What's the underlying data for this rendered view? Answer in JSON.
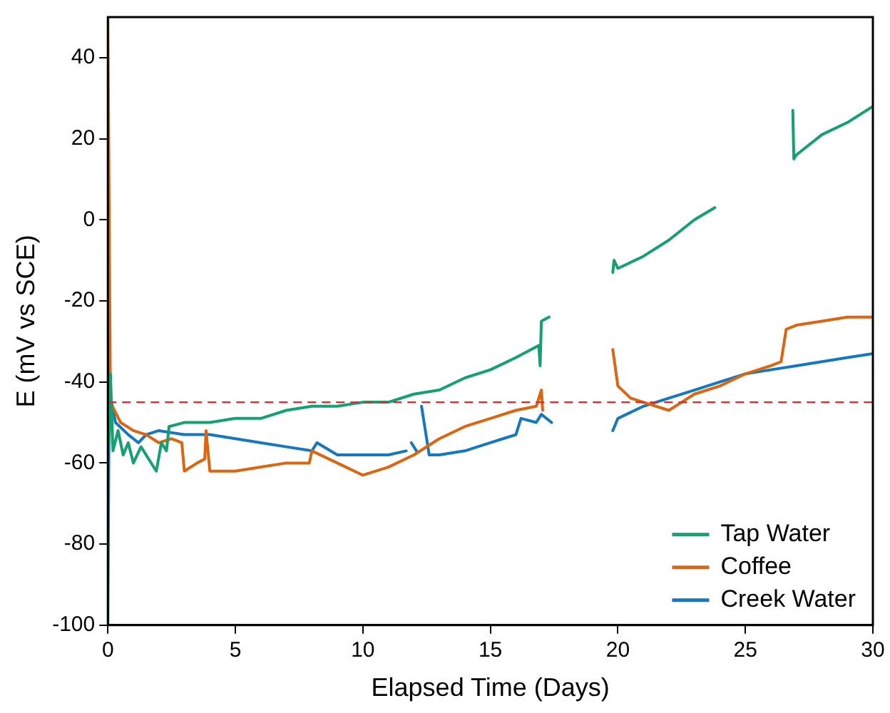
{
  "chart_data": {
    "type": "line",
    "xlabel": "Elapsed Time (Days)",
    "ylabel": "E (mV vs SCE)",
    "xlim": [
      0,
      30
    ],
    "xticks": [
      0,
      5,
      10,
      15,
      20,
      25,
      30
    ],
    "ylim": [
      -100,
      50
    ],
    "yticks": [
      -100,
      -80,
      -60,
      -40,
      -20,
      0,
      20,
      40
    ],
    "grid": false,
    "legend": "bottom right",
    "marker": "none",
    "line_style": "solid",
    "ref_lines": [
      {
        "axis": "y",
        "value": -45,
        "color": "#e8262b",
        "line_style": "dashed"
      }
    ],
    "series": [
      {
        "name": "Tap Water",
        "color": "#14a070",
        "x": [
          0.05,
          0.1,
          0.2,
          0.4,
          0.6,
          0.8,
          1.0,
          1.3,
          1.6,
          1.9,
          2.1,
          2.3,
          2.4,
          3,
          4,
          5,
          6,
          7,
          8,
          9,
          10,
          11,
          12,
          13,
          14,
          15,
          16,
          16.9,
          16.95,
          17.0,
          17.3,
          18.5,
          19.8,
          19.85,
          20,
          21,
          22,
          23,
          23.8,
          25,
          26.86,
          26.9,
          27,
          28,
          29,
          30
        ],
        "values": [
          -55,
          -38,
          -57,
          -52,
          -58,
          -55,
          -60,
          -56,
          -59,
          -62,
          -55,
          -57,
          -51,
          -50,
          -50,
          -49,
          -49,
          -47,
          -46,
          -46,
          -45,
          -45,
          -43,
          -42,
          -39,
          -37,
          -34,
          -31,
          -36,
          -25,
          -24,
          null,
          -13,
          -10,
          -12,
          -9,
          -5,
          0,
          3,
          null,
          27,
          15,
          16,
          21,
          24,
          28
        ]
      },
      {
        "name": "Coffee",
        "color": "#dc6512",
        "x": [
          0,
          0.1,
          0.5,
          1,
          1.5,
          2,
          2.5,
          2.9,
          3,
          3.5,
          3.8,
          3.85,
          4,
          5,
          6,
          7,
          7.9,
          8,
          9,
          10,
          11,
          12,
          13,
          14,
          15,
          16,
          16.8,
          17,
          17.05,
          18.5,
          19.8,
          20,
          20.5,
          21,
          22,
          22.5,
          23,
          24,
          25,
          26,
          26.4,
          26.6,
          27,
          28,
          29,
          30
        ],
        "values": [
          50,
          -45,
          -50,
          -52,
          -53,
          -55,
          -54,
          -55,
          -62,
          -60,
          -59,
          -52,
          -62,
          -62,
          -61,
          -60,
          -60,
          -57,
          -60,
          -63,
          -61,
          -58,
          -54,
          -51,
          -49,
          -47,
          -46,
          -42,
          -47,
          null,
          -32,
          -41,
          -44,
          -45,
          -47,
          -45,
          -43,
          -41,
          -38,
          -36,
          -35,
          -27,
          -26,
          -25,
          -24,
          -24
        ]
      },
      {
        "name": "Creek Water",
        "color": "#1577bf",
        "x": [
          0,
          0.05,
          0.3,
          0.8,
          1.2,
          1.5,
          2,
          3,
          4,
          5,
          6,
          7,
          8,
          8.2,
          9,
          10,
          11,
          11.7,
          11.8,
          11.9,
          12.1,
          12.2,
          12.3,
          12.6,
          13,
          14,
          15,
          15.5,
          16,
          16.2,
          16.8,
          17,
          17.4,
          18.5,
          19.8,
          20,
          21,
          22,
          23,
          24,
          25,
          26,
          27,
          28,
          29,
          30
        ],
        "values": [
          -100,
          -42,
          -50,
          -53,
          -55,
          -53,
          -52,
          -53,
          -53,
          -54,
          -55,
          -56,
          -57,
          -55,
          -58,
          -58,
          -58,
          -57,
          null,
          -55,
          -57,
          null,
          -46,
          -58,
          -58,
          -57,
          -55,
          -54,
          -53,
          -49,
          -50,
          -48,
          -50,
          null,
          -52,
          -49,
          -46,
          -44,
          -42,
          -40,
          -38,
          -37,
          -36,
          -35,
          -34,
          -33
        ]
      }
    ]
  }
}
